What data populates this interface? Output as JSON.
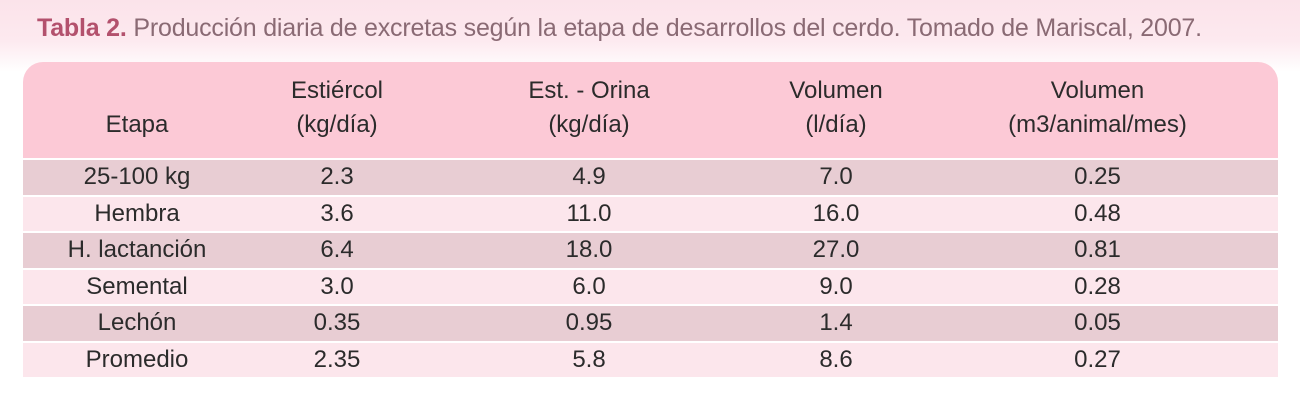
{
  "caption": {
    "label": "Tabla 2.",
    "text": " Producción diaria de excretas según la etapa de desarrollos del cerdo. Tomado de Mariscal, 2007."
  },
  "table": {
    "headers": [
      {
        "line1": "",
        "line2": "Etapa"
      },
      {
        "line1": "Estiércol",
        "line2": "(kg/día)"
      },
      {
        "line1": "Est. - Orina",
        "line2": "(kg/día)"
      },
      {
        "line1": "Volumen",
        "line2": "(l/día)"
      },
      {
        "line1": "Volumen",
        "line2": "(m3/animal/mes)"
      }
    ],
    "rows": [
      [
        "25-100 kg",
        "2.3",
        "4.9",
        "7.0",
        "0.25"
      ],
      [
        "Hembra",
        "3.6",
        "11.0",
        "16.0",
        "0.48"
      ],
      [
        "H. lactanción",
        "6.4",
        "18.0",
        "27.0",
        "0.81"
      ],
      [
        "Semental",
        "3.0",
        "6.0",
        "9.0",
        "0.28"
      ],
      [
        "Lechón",
        "0.35",
        "0.95",
        "1.4",
        "0.05"
      ],
      [
        "Promedio",
        "2.35",
        "5.8",
        "8.6",
        "0.27"
      ]
    ]
  },
  "colors": {
    "header_bg": "#fcc9d6",
    "row_dark": "#e8cdd3",
    "row_light": "#fce6ec",
    "caption_label": "#b3516d",
    "caption_text": "#8a6a74"
  }
}
